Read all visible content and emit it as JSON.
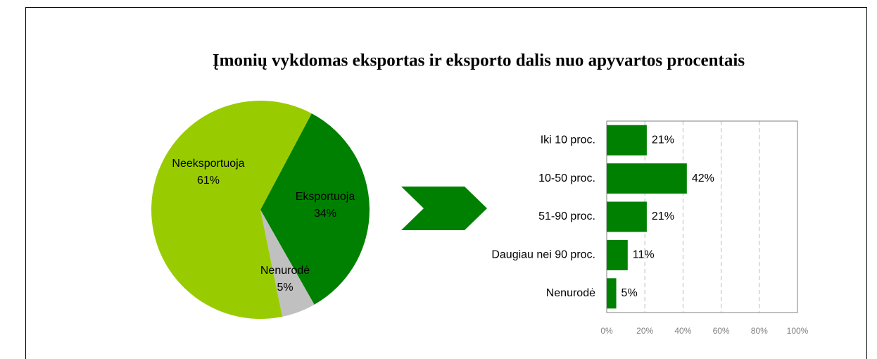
{
  "title": "Įmonių vykdomas eksportas ir eksporto dalis nuo apyvartos procentais",
  "chart_data": [
    {
      "type": "pie",
      "categories": [
        "Eksportuoja",
        "Nenurodė",
        "Neeksportuoja"
      ],
      "values": [
        34,
        5,
        61
      ],
      "value_labels": [
        "34%",
        "5%",
        "61%"
      ],
      "colors": [
        "#008000",
        "#c0c0c0",
        "#99cc00"
      ]
    },
    {
      "type": "hbar",
      "categories": [
        "Iki 10 proc.",
        "10-50 proc.",
        "51-90 proc.",
        "Daugiau nei 90 proc.",
        "Nenurodė"
      ],
      "values": [
        21,
        42,
        21,
        11,
        5
      ],
      "value_labels": [
        "21%",
        "42%",
        "21%",
        "11%",
        "5%"
      ],
      "color": "#008000",
      "xlim": [
        0,
        100
      ],
      "xticks": [
        {
          "value": 0,
          "label": "0%"
        },
        {
          "value": 20,
          "label": "20%"
        },
        {
          "value": 40,
          "label": "40%"
        },
        {
          "value": 60,
          "label": "60%"
        },
        {
          "value": 80,
          "label": "80%"
        },
        {
          "value": 100,
          "label": "100%"
        }
      ],
      "grid": true
    }
  ]
}
